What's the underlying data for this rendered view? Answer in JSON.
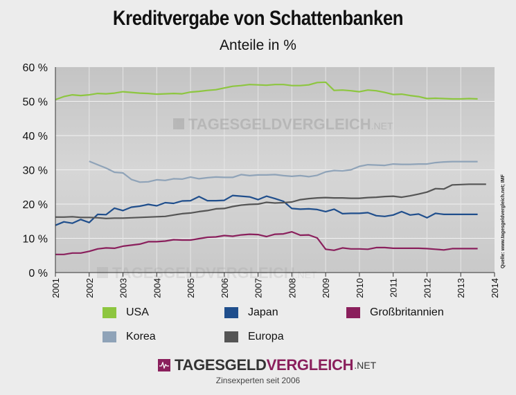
{
  "chart_data": {
    "type": "line",
    "title": "Kreditvergabe von Schattenbanken",
    "subtitle": "Anteile in %",
    "ylim": [
      0,
      60
    ],
    "yticks": [
      "0 %",
      "10 %",
      "20 %",
      "30 %",
      "40 %",
      "50 %",
      "60 %"
    ],
    "xlim": [
      2001,
      2014
    ],
    "xticks": [
      "2001",
      "2002",
      "2003",
      "2004",
      "2005",
      "2006",
      "2007",
      "2008",
      "2009",
      "2010",
      "2011",
      "2012",
      "2013",
      "2014"
    ],
    "grid": true,
    "series": [
      {
        "name": "USA",
        "color": "#8dc63f",
        "x": [
          2001.0,
          2001.25,
          2001.5,
          2001.75,
          2002.0,
          2002.25,
          2002.5,
          2002.75,
          2003.0,
          2003.25,
          2003.5,
          2003.75,
          2004.0,
          2004.25,
          2004.5,
          2004.75,
          2005.0,
          2005.25,
          2005.5,
          2005.75,
          2006.0,
          2006.25,
          2006.5,
          2006.75,
          2007.0,
          2007.25,
          2007.5,
          2007.75,
          2008.0,
          2008.25,
          2008.5,
          2008.75,
          2009.0,
          2009.25,
          2009.5,
          2009.75,
          2010.0,
          2010.25,
          2010.5,
          2010.75,
          2011.0,
          2011.25,
          2011.5,
          2011.75,
          2012.0,
          2012.25,
          2012.5,
          2012.75,
          2013.0,
          2013.25,
          2013.5
        ],
        "values": [
          50.5,
          51.4,
          51.9,
          51.7,
          51.9,
          52.3,
          52.2,
          52.4,
          52.8,
          52.6,
          52.4,
          52.3,
          52.1,
          52.2,
          52.3,
          52.2,
          52.7,
          52.9,
          53.2,
          53.4,
          53.9,
          54.4,
          54.6,
          54.9,
          54.8,
          54.7,
          54.9,
          54.9,
          54.6,
          54.6,
          54.8,
          55.5,
          55.6,
          53.2,
          53.3,
          53.1,
          52.8,
          53.3,
          53.1,
          52.6,
          52.0,
          52.1,
          51.7,
          51.4,
          50.8,
          50.9,
          50.8,
          50.7,
          50.7,
          50.8,
          50.7
        ]
      },
      {
        "name": "Japan",
        "color": "#1f4e8c",
        "x": [
          2001.0,
          2001.25,
          2001.5,
          2001.75,
          2002.0,
          2002.25,
          2002.5,
          2002.75,
          2003.0,
          2003.25,
          2003.5,
          2003.75,
          2004.0,
          2004.25,
          2004.5,
          2004.75,
          2005.0,
          2005.25,
          2005.5,
          2005.75,
          2006.0,
          2006.25,
          2006.5,
          2006.75,
          2007.0,
          2007.25,
          2007.5,
          2007.75,
          2008.0,
          2008.25,
          2008.5,
          2008.75,
          2009.0,
          2009.25,
          2009.5,
          2009.75,
          2010.0,
          2010.25,
          2010.5,
          2010.75,
          2011.0,
          2011.25,
          2011.5,
          2011.75,
          2012.0,
          2012.25,
          2012.5,
          2012.75,
          2013.0,
          2013.25,
          2013.5
        ],
        "values": [
          13.8,
          14.8,
          14.4,
          15.5,
          14.6,
          17.0,
          16.9,
          18.8,
          18.1,
          19.1,
          19.4,
          19.9,
          19.5,
          20.4,
          20.2,
          20.9,
          21.0,
          22.2,
          21.0,
          21.0,
          21.1,
          22.5,
          22.3,
          22.1,
          21.3,
          22.3,
          21.6,
          20.8,
          18.7,
          18.5,
          18.6,
          18.4,
          17.8,
          18.5,
          17.2,
          17.3,
          17.3,
          17.5,
          16.6,
          16.4,
          16.8,
          17.8,
          16.8,
          17.1,
          16.0,
          17.3,
          17.0,
          17.0,
          17.0,
          17.0,
          17.0
        ]
      },
      {
        "name": "Großbritannien",
        "color": "#8a1f5c",
        "x": [
          2001.0,
          2001.25,
          2001.5,
          2001.75,
          2002.0,
          2002.25,
          2002.5,
          2002.75,
          2003.0,
          2003.25,
          2003.5,
          2003.75,
          2004.0,
          2004.25,
          2004.5,
          2004.75,
          2005.0,
          2005.25,
          2005.5,
          2005.75,
          2006.0,
          2006.25,
          2006.5,
          2006.75,
          2007.0,
          2007.25,
          2007.5,
          2007.75,
          2008.0,
          2008.25,
          2008.5,
          2008.75,
          2009.0,
          2009.25,
          2009.5,
          2009.75,
          2010.0,
          2010.25,
          2010.5,
          2010.75,
          2011.0,
          2011.25,
          2011.5,
          2011.75,
          2012.0,
          2012.25,
          2012.5,
          2012.75,
          2013.0,
          2013.25,
          2013.5
        ],
        "values": [
          5.3,
          5.3,
          5.7,
          5.7,
          6.2,
          6.9,
          7.2,
          7.1,
          7.7,
          8.0,
          8.3,
          9.0,
          9.0,
          9.2,
          9.6,
          9.5,
          9.5,
          9.9,
          10.3,
          10.4,
          10.8,
          10.6,
          11.0,
          11.2,
          11.1,
          10.5,
          11.2,
          11.3,
          11.9,
          10.9,
          11.0,
          10.1,
          6.8,
          6.5,
          7.2,
          6.9,
          6.9,
          6.8,
          7.3,
          7.3,
          7.1,
          7.1,
          7.1,
          7.1,
          7.0,
          6.8,
          6.6,
          7.0,
          7.0,
          7.0,
          7.0
        ]
      },
      {
        "name": "Korea",
        "color": "#8fa3b8",
        "x": [
          2002.0,
          2002.25,
          2002.5,
          2002.75,
          2003.0,
          2003.25,
          2003.5,
          2003.75,
          2004.0,
          2004.25,
          2004.5,
          2004.75,
          2005.0,
          2005.25,
          2005.5,
          2005.75,
          2006.0,
          2006.25,
          2006.5,
          2006.75,
          2007.0,
          2007.25,
          2007.5,
          2007.75,
          2008.0,
          2008.25,
          2008.5,
          2008.75,
          2009.0,
          2009.25,
          2009.5,
          2009.75,
          2010.0,
          2010.25,
          2010.5,
          2010.75,
          2011.0,
          2011.25,
          2011.5,
          2011.75,
          2012.0,
          2012.25,
          2012.5,
          2012.75,
          2013.0,
          2013.25,
          2013.5
        ],
        "values": [
          32.5,
          31.5,
          30.5,
          29.3,
          29.1,
          27.2,
          26.4,
          26.5,
          27.1,
          26.9,
          27.4,
          27.3,
          27.9,
          27.4,
          27.7,
          27.9,
          27.8,
          27.8,
          28.6,
          28.3,
          28.5,
          28.5,
          28.6,
          28.3,
          28.1,
          28.3,
          28.0,
          28.4,
          29.4,
          29.8,
          29.7,
          30.0,
          31.0,
          31.5,
          31.4,
          31.3,
          31.7,
          31.6,
          31.6,
          31.7,
          31.7,
          32.1,
          32.3,
          32.4,
          32.4,
          32.4,
          32.4
        ]
      },
      {
        "name": "Europa",
        "color": "#555555",
        "x": [
          2001.0,
          2001.25,
          2001.5,
          2001.75,
          2002.0,
          2002.25,
          2002.5,
          2002.75,
          2003.0,
          2003.25,
          2003.5,
          2003.75,
          2004.0,
          2004.25,
          2004.5,
          2004.75,
          2005.0,
          2005.25,
          2005.5,
          2005.75,
          2006.0,
          2006.25,
          2006.5,
          2006.75,
          2007.0,
          2007.25,
          2007.5,
          2007.75,
          2008.0,
          2008.25,
          2008.5,
          2008.75,
          2009.0,
          2009.25,
          2009.5,
          2009.75,
          2010.0,
          2010.25,
          2010.5,
          2010.75,
          2011.0,
          2011.25,
          2011.5,
          2011.75,
          2012.0,
          2012.25,
          2012.5,
          2012.75,
          2013.0,
          2013.25,
          2013.5,
          2013.75
        ],
        "values": [
          16.2,
          16.2,
          16.3,
          16.1,
          16.1,
          16.0,
          15.8,
          15.9,
          15.9,
          16.0,
          16.1,
          16.2,
          16.3,
          16.4,
          16.8,
          17.2,
          17.4,
          17.8,
          18.1,
          18.6,
          18.7,
          19.3,
          19.7,
          19.9,
          20.0,
          20.5,
          20.3,
          20.4,
          20.6,
          21.3,
          21.6,
          21.8,
          21.9,
          21.8,
          21.8,
          21.7,
          21.7,
          21.9,
          22.0,
          22.2,
          22.3,
          22.0,
          22.4,
          22.9,
          23.5,
          24.5,
          24.4,
          25.6,
          25.7,
          25.8,
          25.8,
          25.8
        ]
      }
    ]
  },
  "legend": [
    {
      "label": "USA",
      "color": "#8dc63f"
    },
    {
      "label": "Japan",
      "color": "#1f4e8c"
    },
    {
      "label": "Großbritannien",
      "color": "#8a1f5c"
    },
    {
      "label": "Korea",
      "color": "#8fa3b8"
    },
    {
      "label": "Europa",
      "color": "#555555"
    }
  ],
  "watermark": {
    "main": "TAGESGELDVERGLEICH",
    "suffix": ".NET"
  },
  "source_note": "Quelle: www.tagesgeldvergleich.net; IMF",
  "footer": {
    "logo_part1": "TAGESGELD",
    "logo_part2": "VERGLEICH",
    "logo_suffix": ".NET",
    "tagline": "Zinsexperten seit 2006"
  },
  "colors": {
    "plot_background": "#cfcfcf",
    "page_background": "#ececec",
    "accent": "#8a1f5c"
  }
}
